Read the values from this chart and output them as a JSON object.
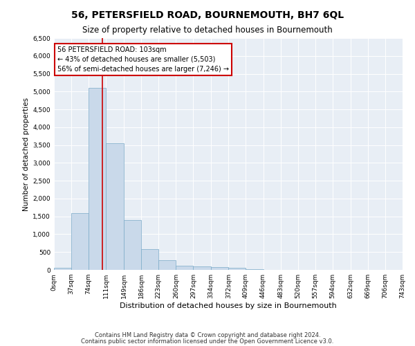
{
  "title": "56, PETERSFIELD ROAD, BOURNEMOUTH, BH7 6QL",
  "subtitle": "Size of property relative to detached houses in Bournemouth",
  "xlabel": "Distribution of detached houses by size in Bournemouth",
  "ylabel": "Number of detached properties",
  "bar_color": "#c9d9ea",
  "bar_edge_color": "#7aaac8",
  "background_color": "#e8eef5",
  "annotation_box_color": "#cc0000",
  "vline_color": "#cc0000",
  "vline_x": 103,
  "annotation_text": "56 PETERSFIELD ROAD: 103sqm\n← 43% of detached houses are smaller (5,503)\n56% of semi-detached houses are larger (7,246) →",
  "footer_line1": "Contains HM Land Registry data © Crown copyright and database right 2024.",
  "footer_line2": "Contains public sector information licensed under the Open Government Licence v3.0.",
  "bin_edges": [
    0,
    37,
    74,
    111,
    149,
    186,
    223,
    260,
    297,
    334,
    372,
    409,
    446,
    483,
    520,
    557,
    594,
    632,
    669,
    706,
    743
  ],
  "bin_heights": [
    60,
    1600,
    5100,
    3550,
    1400,
    580,
    270,
    120,
    100,
    70,
    55,
    10,
    5,
    3,
    3,
    2,
    1,
    1,
    0,
    0
  ],
  "ylim": [
    0,
    6500
  ],
  "yticks": [
    0,
    500,
    1000,
    1500,
    2000,
    2500,
    3000,
    3500,
    4000,
    4500,
    5000,
    5500,
    6000,
    6500
  ],
  "title_fontsize": 10,
  "subtitle_fontsize": 8.5,
  "xlabel_fontsize": 8,
  "ylabel_fontsize": 7.5,
  "tick_fontsize": 6.5,
  "footer_fontsize": 6,
  "ann_fontsize": 7
}
